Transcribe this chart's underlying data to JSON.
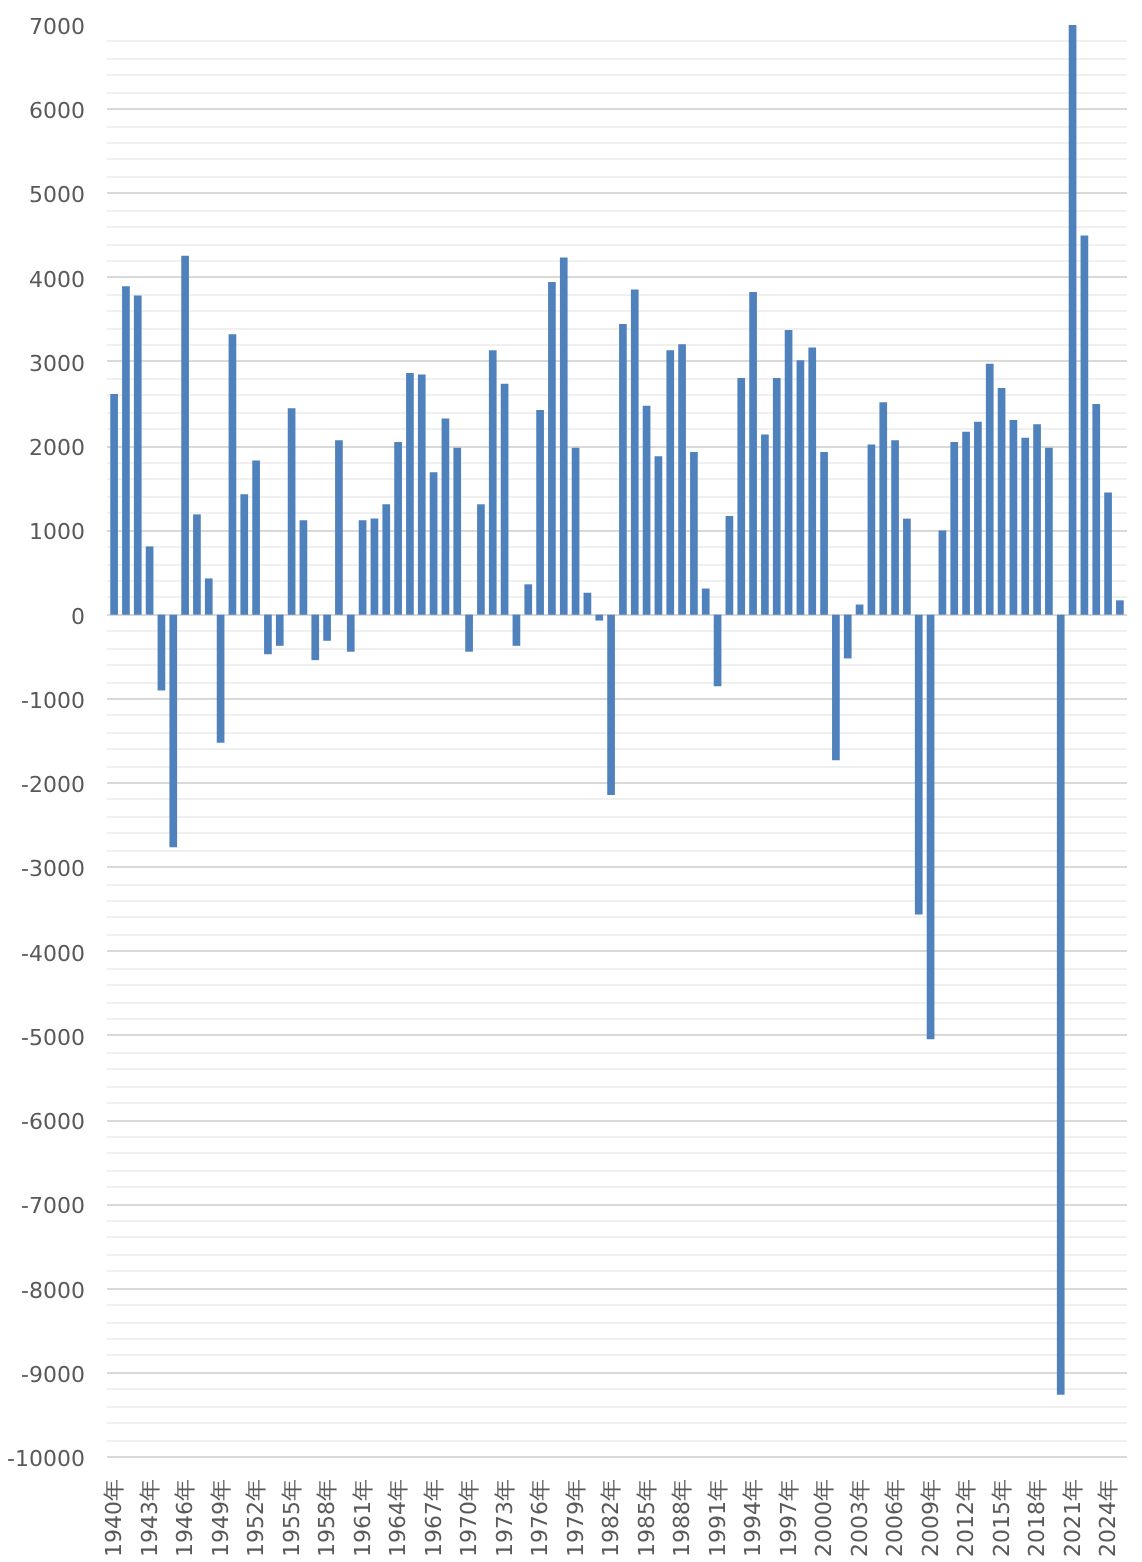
{
  "chart_data": {
    "type": "bar",
    "categories": [
      "1940年",
      null,
      null,
      "1943年",
      null,
      null,
      "1946年",
      null,
      null,
      "1949年",
      null,
      null,
      "1952年",
      null,
      null,
      "1955年",
      null,
      null,
      "1958年",
      null,
      null,
      "1961年",
      null,
      null,
      "1964年",
      null,
      null,
      "1967年",
      null,
      null,
      "1970年",
      null,
      null,
      "1973年",
      null,
      null,
      "1976年",
      null,
      null,
      "1979年",
      null,
      null,
      "1982年",
      null,
      null,
      "1985年",
      null,
      null,
      "1988年",
      null,
      null,
      "1991年",
      null,
      null,
      "1994年",
      null,
      null,
      "1997年",
      null,
      null,
      "2000年",
      null,
      null,
      "2003年",
      null,
      null,
      "2006年",
      null,
      null,
      "2009年",
      null,
      null,
      "2012年",
      null,
      null,
      "2015年",
      null,
      null,
      "2018年",
      null,
      null,
      "2021年",
      null,
      null,
      "2024年",
      null
    ],
    "values": [
      2620,
      3900,
      3790,
      810,
      -900,
      -2760,
      4260,
      1190,
      430,
      -1520,
      3330,
      1430,
      1830,
      -470,
      -370,
      2450,
      1120,
      -540,
      -310,
      2070,
      -440,
      1120,
      1140,
      1310,
      2050,
      2870,
      2850,
      1690,
      2330,
      1980,
      -440,
      1310,
      3140,
      2740,
      -370,
      360,
      2430,
      3950,
      4240,
      1980,
      260,
      -70,
      -2140,
      3450,
      3860,
      2480,
      1880,
      3140,
      3210,
      1930,
      310,
      -850,
      1170,
      2810,
      3830,
      2140,
      2810,
      3380,
      3020,
      3170,
      1930,
      -1730,
      -520,
      120,
      2020,
      2520,
      2070,
      1140,
      -3560,
      -5040,
      1000,
      2050,
      2170,
      2290,
      2980,
      2690,
      2310,
      2100,
      2260,
      1980,
      -9260,
      7000,
      4500,
      2500,
      1450,
      170
    ],
    "color": "#4f81bd",
    "ylim": [
      -10000,
      7000
    ],
    "yticks": [
      -10000,
      -9000,
      -8000,
      -7000,
      -6000,
      -5000,
      -4000,
      -3000,
      -2000,
      -1000,
      0,
      1000,
      2000,
      3000,
      4000,
      5000,
      6000,
      7000
    ],
    "grid": "y"
  }
}
